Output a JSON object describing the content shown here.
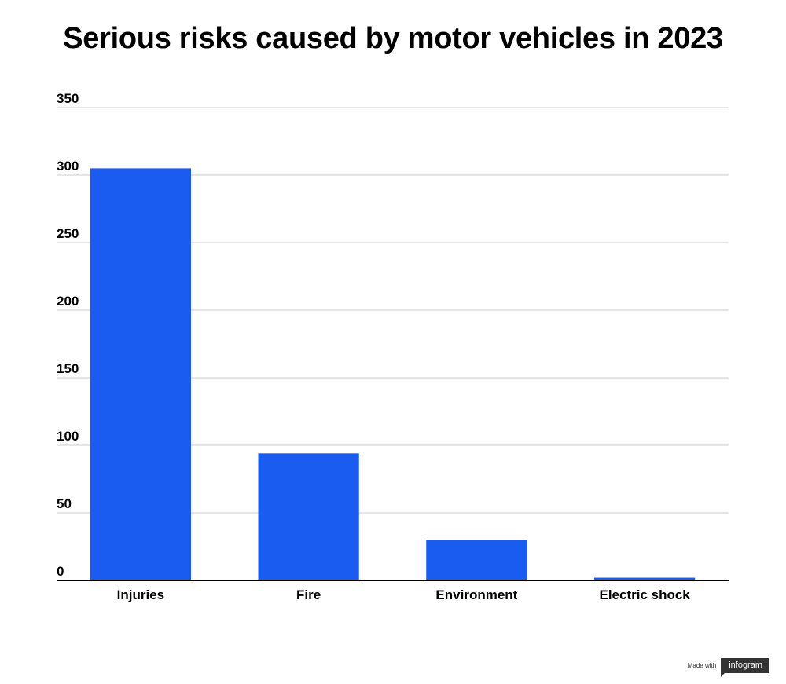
{
  "chart_data": {
    "type": "bar",
    "title": "Serious risks caused by motor vehicles in 2023",
    "categories": [
      "Injuries",
      "Fire",
      "Environment",
      "Electric shock"
    ],
    "values": [
      305,
      94,
      30,
      2
    ],
    "xlabel": "",
    "ylabel": "",
    "ylim": [
      0,
      350
    ],
    "yticks": [
      "0",
      "50",
      "100",
      "150",
      "200",
      "250",
      "300",
      "350"
    ],
    "grid": true,
    "legend": "none",
    "bar_color": "#1a5cf0"
  },
  "footer": {
    "made_with": "Made with",
    "brand": "infogram"
  }
}
